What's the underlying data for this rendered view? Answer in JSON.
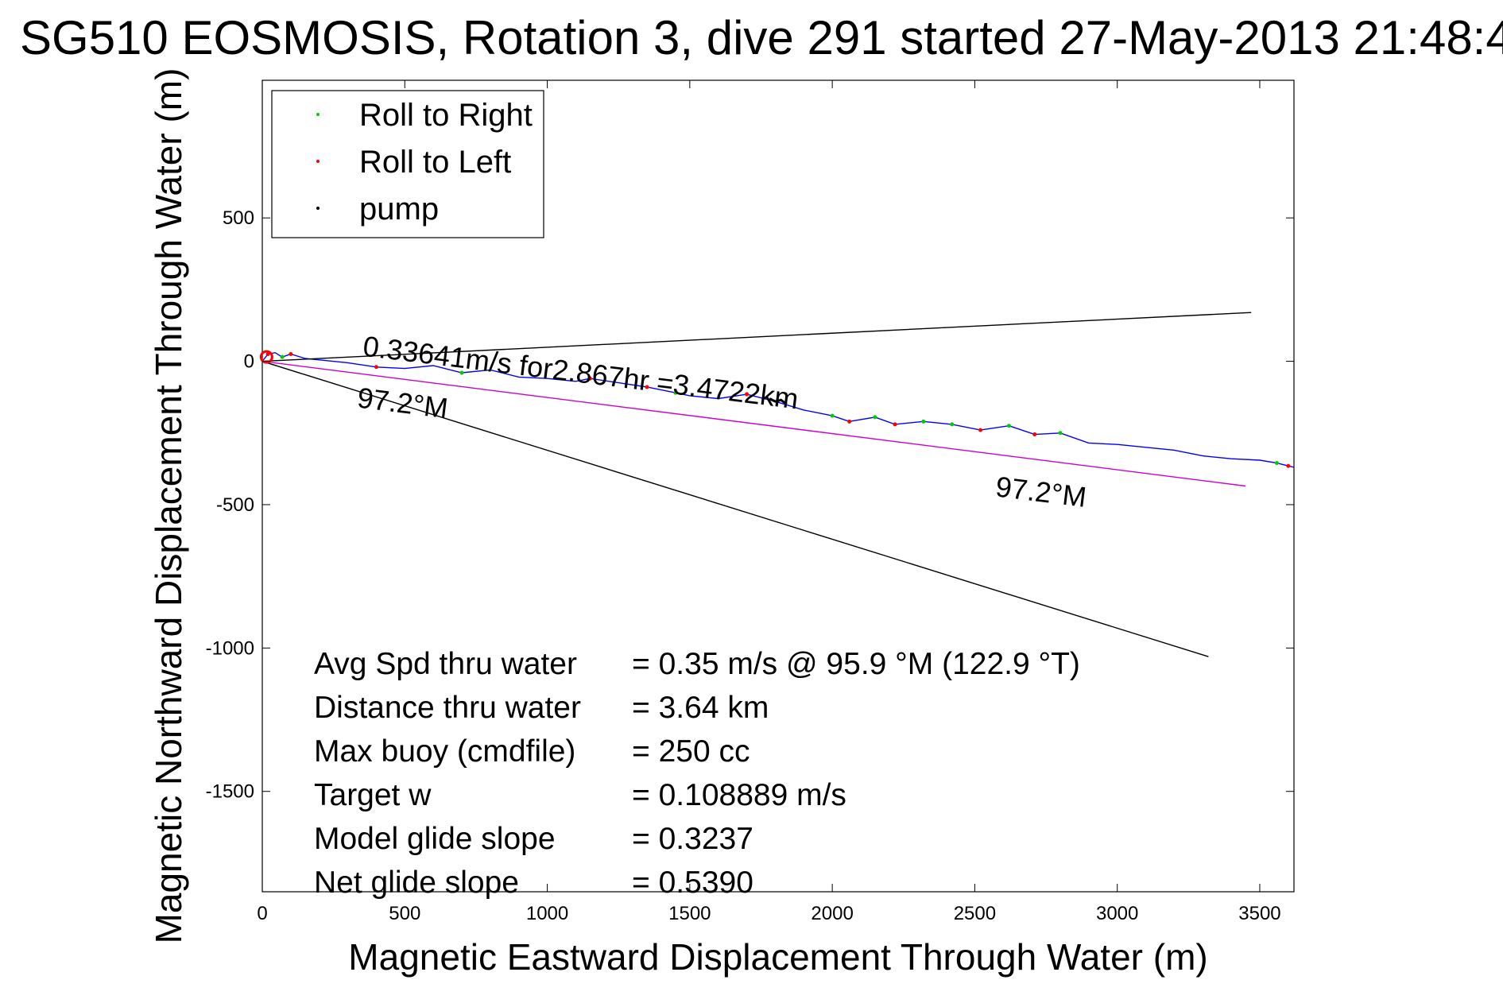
{
  "chart_data": {
    "type": "line",
    "title": "SG510 EOSMOSIS, Rotation 3, dive 291 started 27-May-2013 21:48:4",
    "xlabel": "Magnetic Eastward Displacement Through Water (m)",
    "ylabel": "Magnetic Northward Displacement Through Water (m)",
    "xlim": [
      0,
      3620
    ],
    "ylim": [
      -1850,
      980
    ],
    "x_ticks": [
      0,
      500,
      1000,
      1500,
      2000,
      2500,
      3000,
      3500
    ],
    "y_ticks": [
      500,
      0,
      -500,
      -1000,
      -1500
    ],
    "x_tick_labels": [
      "0",
      "500",
      "1000",
      "1500",
      "2000",
      "2500",
      "3000",
      "3500"
    ],
    "y_tick_labels": [
      "500",
      "0",
      "-500",
      "-1000",
      "-1500"
    ],
    "grid": true,
    "legend_position": "top-left",
    "legend": [
      {
        "label": "Roll to Right",
        "color": "#00cc00"
      },
      {
        "label": "Roll to Left",
        "color": "#ff0000"
      },
      {
        "label": "pump",
        "color": "#000000"
      }
    ],
    "series": [
      {
        "name": "track",
        "color": "#0000ff",
        "x": [
          0,
          20,
          45,
          70,
          100,
          150,
          200,
          300,
          400,
          500,
          600,
          700,
          800,
          900,
          1000,
          1100,
          1150,
          1250,
          1350,
          1450,
          1500,
          1600,
          1700,
          1800,
          1900,
          2000,
          2060,
          2150,
          2220,
          2320,
          2420,
          2520,
          2620,
          2710,
          2800,
          2900,
          3000,
          3100,
          3200,
          3300,
          3400,
          3500,
          3560,
          3600,
          3620
        ],
        "y": [
          0,
          25,
          30,
          15,
          25,
          10,
          5,
          -5,
          -20,
          -25,
          -15,
          -40,
          -30,
          -55,
          -60,
          -70,
          -60,
          -75,
          -90,
          -110,
          -120,
          -130,
          -115,
          -140,
          -170,
          -190,
          -210,
          -195,
          -220,
          -210,
          -220,
          -240,
          -225,
          -255,
          -250,
          -285,
          -290,
          -300,
          -310,
          -330,
          -340,
          -345,
          -355,
          -365,
          -370
        ]
      },
      {
        "name": "heading",
        "color": "#cc00cc",
        "x": [
          0,
          3450
        ],
        "y": [
          0,
          -435
        ]
      },
      {
        "name": "bound-upper",
        "color": "#000000",
        "x": [
          0,
          3470
        ],
        "y": [
          0,
          170
        ]
      },
      {
        "name": "bound-lower",
        "color": "#000000",
        "x": [
          0,
          3320
        ],
        "y": [
          0,
          -1030
        ]
      }
    ],
    "markers": {
      "roll_right": {
        "color": "#00cc00",
        "x": [
          70,
          700,
          1450,
          1700,
          2000,
          2150,
          2320,
          2420,
          2620,
          2800,
          3560
        ],
        "y": [
          15,
          -40,
          -110,
          -115,
          -190,
          -195,
          -210,
          -220,
          -225,
          -250,
          -355
        ]
      },
      "roll_left": {
        "color": "#ff0000",
        "x": [
          20,
          100,
          400,
          1150,
          1350,
          1700,
          2060,
          2220,
          2520,
          2710,
          3600
        ],
        "y": [
          25,
          25,
          -20,
          -60,
          -90,
          -115,
          -210,
          -220,
          -240,
          -255,
          -365
        ]
      },
      "pump": {
        "color": "#000000",
        "x": [
          1780,
          1800,
          1820,
          1840
        ],
        "y": [
          -130,
          -140,
          -135,
          -150
        ]
      }
    },
    "annotations": [
      {
        "text": "0.33641m/s for2.867hr =3.4722km",
        "x": 350,
        "y": 20,
        "rotate": 7
      },
      {
        "text": "97.2°M",
        "x": 330,
        "y": -160,
        "rotate": 7
      },
      {
        "text": "97.2°M",
        "x": 2570,
        "y": -470,
        "rotate": 7
      }
    ],
    "stats": [
      {
        "label": "Avg Spd thru water",
        "value": "=  0.35 m/s @  95.9 °M (122.9 °T)"
      },
      {
        "label": "Distance thru water",
        "value": "=  3.64 km"
      },
      {
        "label": "Max buoy (cmdfile)",
        "value": "= 250 cc"
      },
      {
        "label": "Target w",
        "value": "= 0.108889 m/s"
      },
      {
        "label": "Model glide slope",
        "value": "= 0.3237"
      },
      {
        "label": "Net glide slope",
        "value": "= 0.5390"
      }
    ]
  }
}
